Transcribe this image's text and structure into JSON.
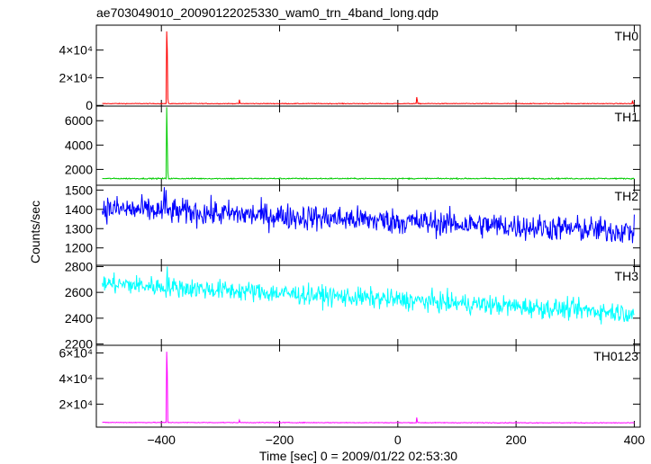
{
  "chart_data": {
    "type": "line",
    "title": "ae703049010_20090122025330_wam0_trn_4band_long.qdp",
    "xlabel": "Time [sec] 0 = 2009/01/22 02:53:30",
    "ylabel": "Counts/sec",
    "xlim": [
      -510,
      410
    ],
    "x_ticks": [
      -400,
      -200,
      0,
      200,
      400
    ],
    "x_tick_labels": [
      "−400",
      "−200",
      "0",
      "200",
      "400"
    ],
    "panels": [
      {
        "name": "TH0",
        "color": "#ff0000",
        "ylim": [
          -500,
          58000
        ],
        "y_ticks": [
          0,
          20000,
          40000
        ],
        "y_tick_labels": [
          "0",
          "2×10⁴",
          "4×10⁴"
        ],
        "baseline": 1300,
        "noise": 180,
        "trend": 0,
        "spikes": [
          [
            -391,
            53500
          ],
          [
            -390,
            40000
          ],
          [
            -389,
            5000
          ],
          [
            -268,
            4200
          ],
          [
            32,
            6000
          ],
          [
            33,
            3500
          ],
          [
            397,
            3500
          ]
        ]
      },
      {
        "name": "TH1",
        "color": "#00cc00",
        "ylim": [
          700,
          7200
        ],
        "y_ticks": [
          2000,
          4000,
          6000
        ],
        "y_tick_labels": [
          "2000",
          "4000",
          "6000"
        ],
        "baseline": 1250,
        "noise": 35,
        "trend": 0,
        "spikes": [
          [
            -391,
            7100
          ],
          [
            -390,
            4200
          ],
          [
            -389,
            1800
          ]
        ]
      },
      {
        "name": "TH2",
        "color": "#0000ff",
        "ylim": [
          1110,
          1525
        ],
        "y_ticks": [
          1200,
          1300,
          1400,
          1500
        ],
        "y_tick_labels": [
          "1200",
          "1300",
          "1400",
          "1500"
        ],
        "baseline": 1345,
        "noise": 48,
        "trend": -120,
        "spikes": [
          [
            -395,
            1515
          ],
          [
            -392,
            1500
          ]
        ]
      },
      {
        "name": "TH3",
        "color": "#00ffff",
        "ylim": [
          2190,
          2810
        ],
        "y_ticks": [
          2200,
          2400,
          2600,
          2800
        ],
        "y_tick_labels": [
          "2200",
          "2400",
          "2600",
          "2800"
        ],
        "baseline": 2555,
        "noise": 55,
        "trend": -230,
        "spikes": [
          [
            -390,
            2800
          ]
        ]
      },
      {
        "name": "TH0123",
        "color": "#ff00ff",
        "ylim": [
          2000,
          66000
        ],
        "y_ticks": [
          20000,
          40000,
          60000
        ],
        "y_tick_labels": [
          "2×10⁴",
          "4×10⁴",
          "6×10⁴"
        ],
        "baseline": 5500,
        "noise": 200,
        "trend": -300,
        "spikes": [
          [
            -391,
            61000
          ],
          [
            -390,
            45000
          ],
          [
            -268,
            7500
          ],
          [
            32,
            9500
          ],
          [
            33,
            6500
          ]
        ]
      }
    ]
  }
}
